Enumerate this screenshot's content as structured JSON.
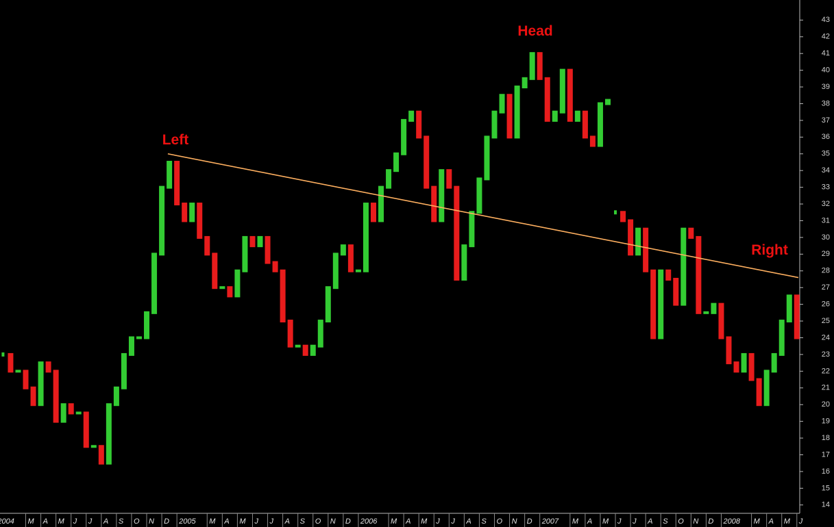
{
  "chart_data": {
    "type": "price-bars",
    "series": [
      {
        "up_color": "#33cc33",
        "down_color": "#e81c1c",
        "x": [
          0.5,
          1,
          1.5,
          2,
          2.5,
          3,
          3.5,
          4,
          4.5,
          5,
          5.5,
          6,
          6.5,
          7,
          7.5,
          8,
          8.5,
          9,
          9.5,
          10,
          10.5,
          11,
          11.5,
          12,
          12.5,
          13,
          13.5,
          14,
          14.5,
          15,
          15.5,
          16,
          16.5,
          17,
          17.5,
          18,
          18.5,
          19,
          19.5,
          20,
          20.5,
          21,
          21.5,
          22,
          22.5,
          23,
          23.5,
          24,
          24.5,
          25,
          25.5,
          26,
          26.5,
          27,
          27.5,
          28,
          28.5,
          29,
          29.5,
          30,
          30.5,
          31,
          31.5,
          32,
          32.5,
          33,
          33.5,
          34,
          34.5,
          35,
          35.5,
          36,
          36.5,
          37,
          37.5,
          38,
          38.5,
          39,
          39.5,
          40,
          40.5,
          40.8,
          41,
          41.5,
          42,
          42.5,
          43,
          43.5,
          44,
          44.5,
          45,
          45.5,
          46,
          46.5,
          47,
          47.5,
          48,
          48.5,
          49,
          49.5,
          50,
          50.5,
          51,
          51.5,
          52,
          52.5,
          53
        ],
        "values": [
          23,
          22,
          22,
          21,
          20,
          22.5,
          22,
          19,
          20,
          19.5,
          19.5,
          17.5,
          17.5,
          16.5,
          20,
          21,
          23,
          24,
          24,
          25.5,
          29,
          33,
          34.5,
          32,
          31,
          32,
          30,
          29,
          27,
          27,
          26.5,
          28,
          30,
          29.5,
          30,
          28.5,
          28,
          25,
          23.5,
          23.5,
          23,
          23.5,
          25,
          27,
          29,
          29.5,
          28,
          28,
          32,
          31,
          33,
          34,
          35,
          37,
          37.5,
          36,
          33,
          31,
          34,
          33,
          27.5,
          29.5,
          31.5,
          33.5,
          36,
          37.5,
          38.5,
          36,
          39,
          39.5,
          41,
          39.5,
          37,
          37.5,
          40,
          37,
          37.5,
          36,
          35.5,
          38,
          38.2,
          null,
          31.5,
          31,
          29,
          30.5,
          28,
          24,
          28,
          27.5,
          26,
          30.5,
          30,
          25.5,
          25.5,
          26,
          24,
          22.5,
          22,
          23,
          21.5,
          20,
          22,
          23,
          25,
          26.5,
          24
        ]
      }
    ],
    "xlim": [
      0.3,
      53.1
    ],
    "ylim": [
      13.5,
      44.2
    ],
    "yticks": [
      14,
      15,
      16,
      17,
      18,
      19,
      20,
      21,
      22,
      23,
      24,
      25,
      26,
      27,
      28,
      29,
      30,
      31,
      32,
      33,
      34,
      35,
      36,
      37,
      38,
      39,
      40,
      41,
      42,
      43
    ],
    "xticks": [
      {
        "value": 0,
        "label": "2004"
      },
      {
        "value": 2,
        "label": "M"
      },
      {
        "value": 3,
        "label": "A"
      },
      {
        "value": 4,
        "label": "M"
      },
      {
        "value": 5,
        "label": "J"
      },
      {
        "value": 6,
        "label": "J"
      },
      {
        "value": 7,
        "label": "A"
      },
      {
        "value": 8,
        "label": "S"
      },
      {
        "value": 9,
        "label": "O"
      },
      {
        "value": 10,
        "label": "N"
      },
      {
        "value": 11,
        "label": "D"
      },
      {
        "value": 12,
        "label": "2005"
      },
      {
        "value": 14,
        "label": "M"
      },
      {
        "value": 15,
        "label": "A"
      },
      {
        "value": 16,
        "label": "M"
      },
      {
        "value": 17,
        "label": "J"
      },
      {
        "value": 18,
        "label": "J"
      },
      {
        "value": 19,
        "label": "A"
      },
      {
        "value": 20,
        "label": "S"
      },
      {
        "value": 21,
        "label": "O"
      },
      {
        "value": 22,
        "label": "N"
      },
      {
        "value": 23,
        "label": "D"
      },
      {
        "value": 24,
        "label": "2006"
      },
      {
        "value": 26,
        "label": "M"
      },
      {
        "value": 27,
        "label": "A"
      },
      {
        "value": 28,
        "label": "M"
      },
      {
        "value": 29,
        "label": "J"
      },
      {
        "value": 30,
        "label": "J"
      },
      {
        "value": 31,
        "label": "A"
      },
      {
        "value": 32,
        "label": "S"
      },
      {
        "value": 33,
        "label": "O"
      },
      {
        "value": 34,
        "label": "N"
      },
      {
        "value": 35,
        "label": "D"
      },
      {
        "value": 36,
        "label": "2007"
      },
      {
        "value": 38,
        "label": "M"
      },
      {
        "value": 39,
        "label": "A"
      },
      {
        "value": 40,
        "label": "M"
      },
      {
        "value": 41,
        "label": "J"
      },
      {
        "value": 42,
        "label": "J"
      },
      {
        "value": 43,
        "label": "A"
      },
      {
        "value": 44,
        "label": "S"
      },
      {
        "value": 45,
        "label": "O"
      },
      {
        "value": 46,
        "label": "N"
      },
      {
        "value": 47,
        "label": "D"
      },
      {
        "value": 48,
        "label": "2008"
      },
      {
        "value": 50,
        "label": "M"
      },
      {
        "value": 51,
        "label": "A"
      },
      {
        "value": 52,
        "label": "M"
      },
      {
        "value": 53,
        "label": "J"
      }
    ],
    "trendline": {
      "x": [
        11.4,
        53.1
      ],
      "y": [
        35,
        27.6
      ],
      "color": "#ffb060"
    },
    "annotations": [
      {
        "text": "Left",
        "x": 11.9,
        "y": 35.8
      },
      {
        "text": "Head",
        "x": 35.7,
        "y": 42.3
      },
      {
        "text": "Right",
        "x": 51.2,
        "y": 29.2
      }
    ]
  }
}
